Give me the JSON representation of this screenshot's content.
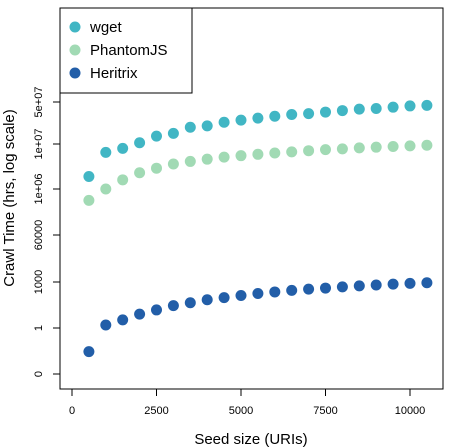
{
  "chart_data": {
    "type": "scatter",
    "xlabel": "Seed size (URIs)",
    "ylabel": "Crawl Time (hrs, log scale)",
    "xlim": [
      0,
      10500
    ],
    "x_ticks": [
      0,
      2500,
      5000,
      7500,
      10000
    ],
    "y_scale": "log",
    "y_ticks": [
      0,
      1,
      1000,
      60000,
      1000000,
      10000000,
      50000000
    ],
    "y_tick_labels": [
      "0",
      "1",
      "1000",
      "60000",
      "1e+06",
      "1e+07",
      "5e+07"
    ],
    "legend_position": "top-left",
    "x": [
      500,
      1000,
      1500,
      2000,
      2500,
      3000,
      3500,
      4000,
      4500,
      5000,
      5500,
      6000,
      6500,
      7000,
      7500,
      8000,
      8500,
      9000,
      9500,
      10000,
      10500
    ],
    "series": [
      {
        "name": "wget",
        "color": "#41b6c4",
        "values": [
          1900000,
          6500000,
          8000000,
          10500000,
          13500000,
          15000000,
          19000000,
          20000000,
          23000000,
          25000000,
          27000000,
          29000000,
          31000000,
          32000000,
          34000000,
          36000000,
          38000000,
          39000000,
          41000000,
          43000000,
          44000000
        ]
      },
      {
        "name": "PhantomJS",
        "color": "#a1dab4",
        "values": [
          500000,
          1000000,
          1600000,
          2300000,
          2900000,
          3600000,
          4100000,
          4600000,
          5100000,
          5500000,
          5900000,
          6300000,
          6700000,
          7100000,
          7500000,
          7800000,
          8200000,
          8500000,
          8800000,
          9100000,
          9400000
        ]
      },
      {
        "name": "Heritrix",
        "color": "#225ea8",
        "values": [
          0.4,
          2,
          5,
          12,
          22,
          40,
          60,
          90,
          120,
          160,
          210,
          260,
          320,
          380,
          440,
          520,
          590,
          670,
          750,
          830,
          900
        ]
      }
    ]
  }
}
